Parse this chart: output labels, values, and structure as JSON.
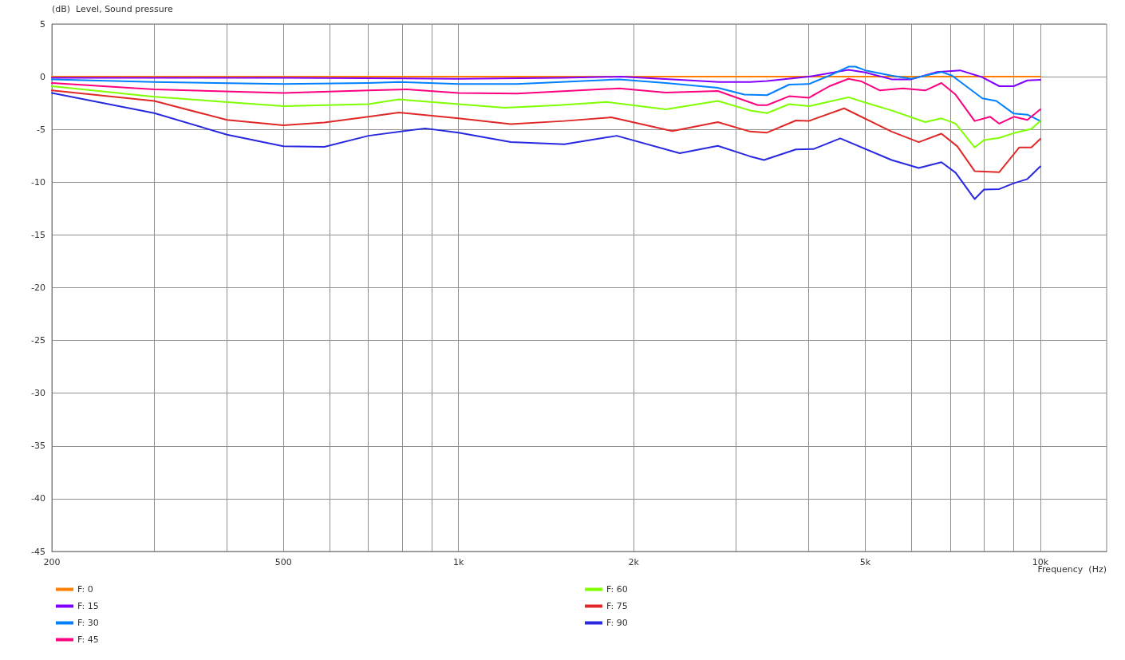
{
  "chart_data": {
    "type": "line",
    "ylabel": "(dB)  Level, Sound pressure",
    "xlabel": "Frequency  (Hz)",
    "log": "x",
    "grid": true,
    "legend": "bottom left",
    "marker": "none",
    "line_style": "solid",
    "xlim": [
      200,
      13000
    ],
    "xticks": [
      200,
      {
        "value": 300,
        "label": null
      },
      {
        "value": 400,
        "label": null
      },
      500,
      {
        "value": 600,
        "label": null
      },
      {
        "value": 700,
        "label": null
      },
      {
        "value": 800,
        "label": null
      },
      {
        "value": 900,
        "label": null
      },
      {
        "value": 1000,
        "label": "1k"
      },
      {
        "value": 2000,
        "label": "2k"
      },
      {
        "value": 3000,
        "label": null
      },
      {
        "value": 4000,
        "label": null
      },
      {
        "value": 5000,
        "label": "5k"
      },
      {
        "value": 6000,
        "label": null
      },
      {
        "value": 7000,
        "label": null
      },
      {
        "value": 8000,
        "label": null
      },
      {
        "value": 9000,
        "label": null
      },
      {
        "value": 10000,
        "label": "10k"
      }
    ],
    "ylim": [
      -45,
      5
    ],
    "yticks": [
      -45,
      -40,
      -35,
      -30,
      -25,
      -20,
      -15,
      -10,
      -5,
      0,
      5
    ],
    "series": [
      {
        "name": "F: 0",
        "color": "#ff8000",
        "x": [
          200,
          10000
        ],
        "values": [
          0,
          0
        ]
      },
      {
        "name": "F: 15",
        "color": "#8000ff",
        "x": [
          200,
          500,
          1000,
          1500,
          1900,
          2400,
          2800,
          3170,
          3390,
          4000,
          4680,
          5000,
          5550,
          6000,
          6640,
          7280,
          7950,
          8500,
          9000,
          9500,
          10000
        ],
        "values": [
          -0.1,
          -0.1,
          -0.2,
          -0.1,
          0,
          -0.3,
          -0.5,
          -0.5,
          -0.4,
          0,
          0.65,
          0.4,
          -0.25,
          -0.25,
          0.45,
          0.6,
          -0.05,
          -0.9,
          -0.9,
          -0.35,
          -0.3
        ]
      },
      {
        "name": "F: 30",
        "color": "#0080ff",
        "x": [
          200,
          300,
          500,
          700,
          790,
          1000,
          1260,
          1890,
          2270,
          2790,
          3100,
          3390,
          3700,
          4000,
          4340,
          4680,
          4810,
          5000,
          5550,
          6000,
          6340,
          6760,
          7050,
          7950,
          8400,
          9000,
          9500,
          10000
        ],
        "values": [
          -0.25,
          -0.5,
          -0.7,
          -0.6,
          -0.5,
          -0.7,
          -0.7,
          -0.25,
          -0.6,
          -1.05,
          -1.7,
          -1.75,
          -0.75,
          -0.7,
          0.1,
          0.95,
          0.95,
          0.6,
          0.1,
          -0.2,
          0.1,
          0.45,
          0.1,
          -2.05,
          -2.3,
          -3.5,
          -3.6,
          -4.2
        ]
      },
      {
        "name": "F: 45",
        "color": "#ff0080",
        "x": [
          200,
          300,
          500,
          700,
          815,
          1000,
          1260,
          1890,
          2270,
          2790,
          3270,
          3390,
          3700,
          4000,
          4340,
          4680,
          4930,
          5300,
          5800,
          6340,
          6760,
          7150,
          7710,
          8200,
          8500,
          9000,
          9500,
          10000
        ],
        "values": [
          -0.6,
          -1.2,
          -1.55,
          -1.3,
          -1.2,
          -1.55,
          -1.6,
          -1.1,
          -1.5,
          -1.35,
          -2.7,
          -2.7,
          -1.85,
          -2,
          -0.9,
          -0.2,
          -0.45,
          -1.3,
          -1.1,
          -1.3,
          -0.6,
          -1.7,
          -4.2,
          -3.8,
          -4.45,
          -3.8,
          -4.1,
          -3.1
        ]
      },
      {
        "name": "F: 60",
        "color": "#80ff00",
        "x": [
          200,
          300,
          500,
          700,
          790,
          1000,
          1200,
          1490,
          1800,
          2270,
          2790,
          3170,
          3390,
          3700,
          4000,
          4680,
          5000,
          5550,
          6340,
          6760,
          7150,
          7710,
          8000,
          8500,
          9000,
          9650,
          10000
        ],
        "values": [
          -0.9,
          -1.9,
          -2.8,
          -2.6,
          -2.15,
          -2.6,
          -2.95,
          -2.7,
          -2.4,
          -3.1,
          -2.3,
          -3.2,
          -3.45,
          -2.6,
          -2.8,
          -1.95,
          -2.45,
          -3.2,
          -4.3,
          -3.95,
          -4.45,
          -6.7,
          -6,
          -5.8,
          -5.35,
          -4.95,
          -4.2
        ]
      },
      {
        "name": "F: 75",
        "color": "#e02828",
        "x": [
          200,
          300,
          400,
          500,
          588,
          700,
          790,
          1000,
          1230,
          1520,
          1830,
          2330,
          2790,
          3170,
          3390,
          3800,
          4000,
          4600,
          5550,
          6180,
          6760,
          7200,
          7710,
          8500,
          9200,
          9650,
          10000
        ],
        "values": [
          -1.3,
          -2.3,
          -4.1,
          -4.6,
          -4.35,
          -3.8,
          -3.4,
          -3.95,
          -4.5,
          -4.2,
          -3.85,
          -5.15,
          -4.3,
          -5.2,
          -5.3,
          -4.15,
          -4.2,
          -3,
          -5.2,
          -6.2,
          -5.4,
          -6.6,
          -8.95,
          -9.05,
          -6.7,
          -6.7,
          -5.9
        ]
      },
      {
        "name": "F: 90",
        "color": "#2828e0",
        "x": [
          200,
          300,
          400,
          500,
          588,
          700,
          876,
          1000,
          1230,
          1520,
          1870,
          2400,
          2790,
          3170,
          3350,
          3800,
          4080,
          4530,
          5550,
          6180,
          6760,
          7150,
          7710,
          8000,
          8500,
          9000,
          9500,
          10000
        ],
        "values": [
          -1.55,
          -3.45,
          -5.5,
          -6.6,
          -6.65,
          -5.6,
          -4.9,
          -5.3,
          -6.2,
          -6.4,
          -5.6,
          -7.25,
          -6.55,
          -7.55,
          -7.9,
          -6.9,
          -6.85,
          -5.85,
          -7.9,
          -8.65,
          -8.1,
          -9.1,
          -11.6,
          -10.7,
          -10.65,
          -10.1,
          -9.7,
          -8.5
        ]
      }
    ]
  }
}
